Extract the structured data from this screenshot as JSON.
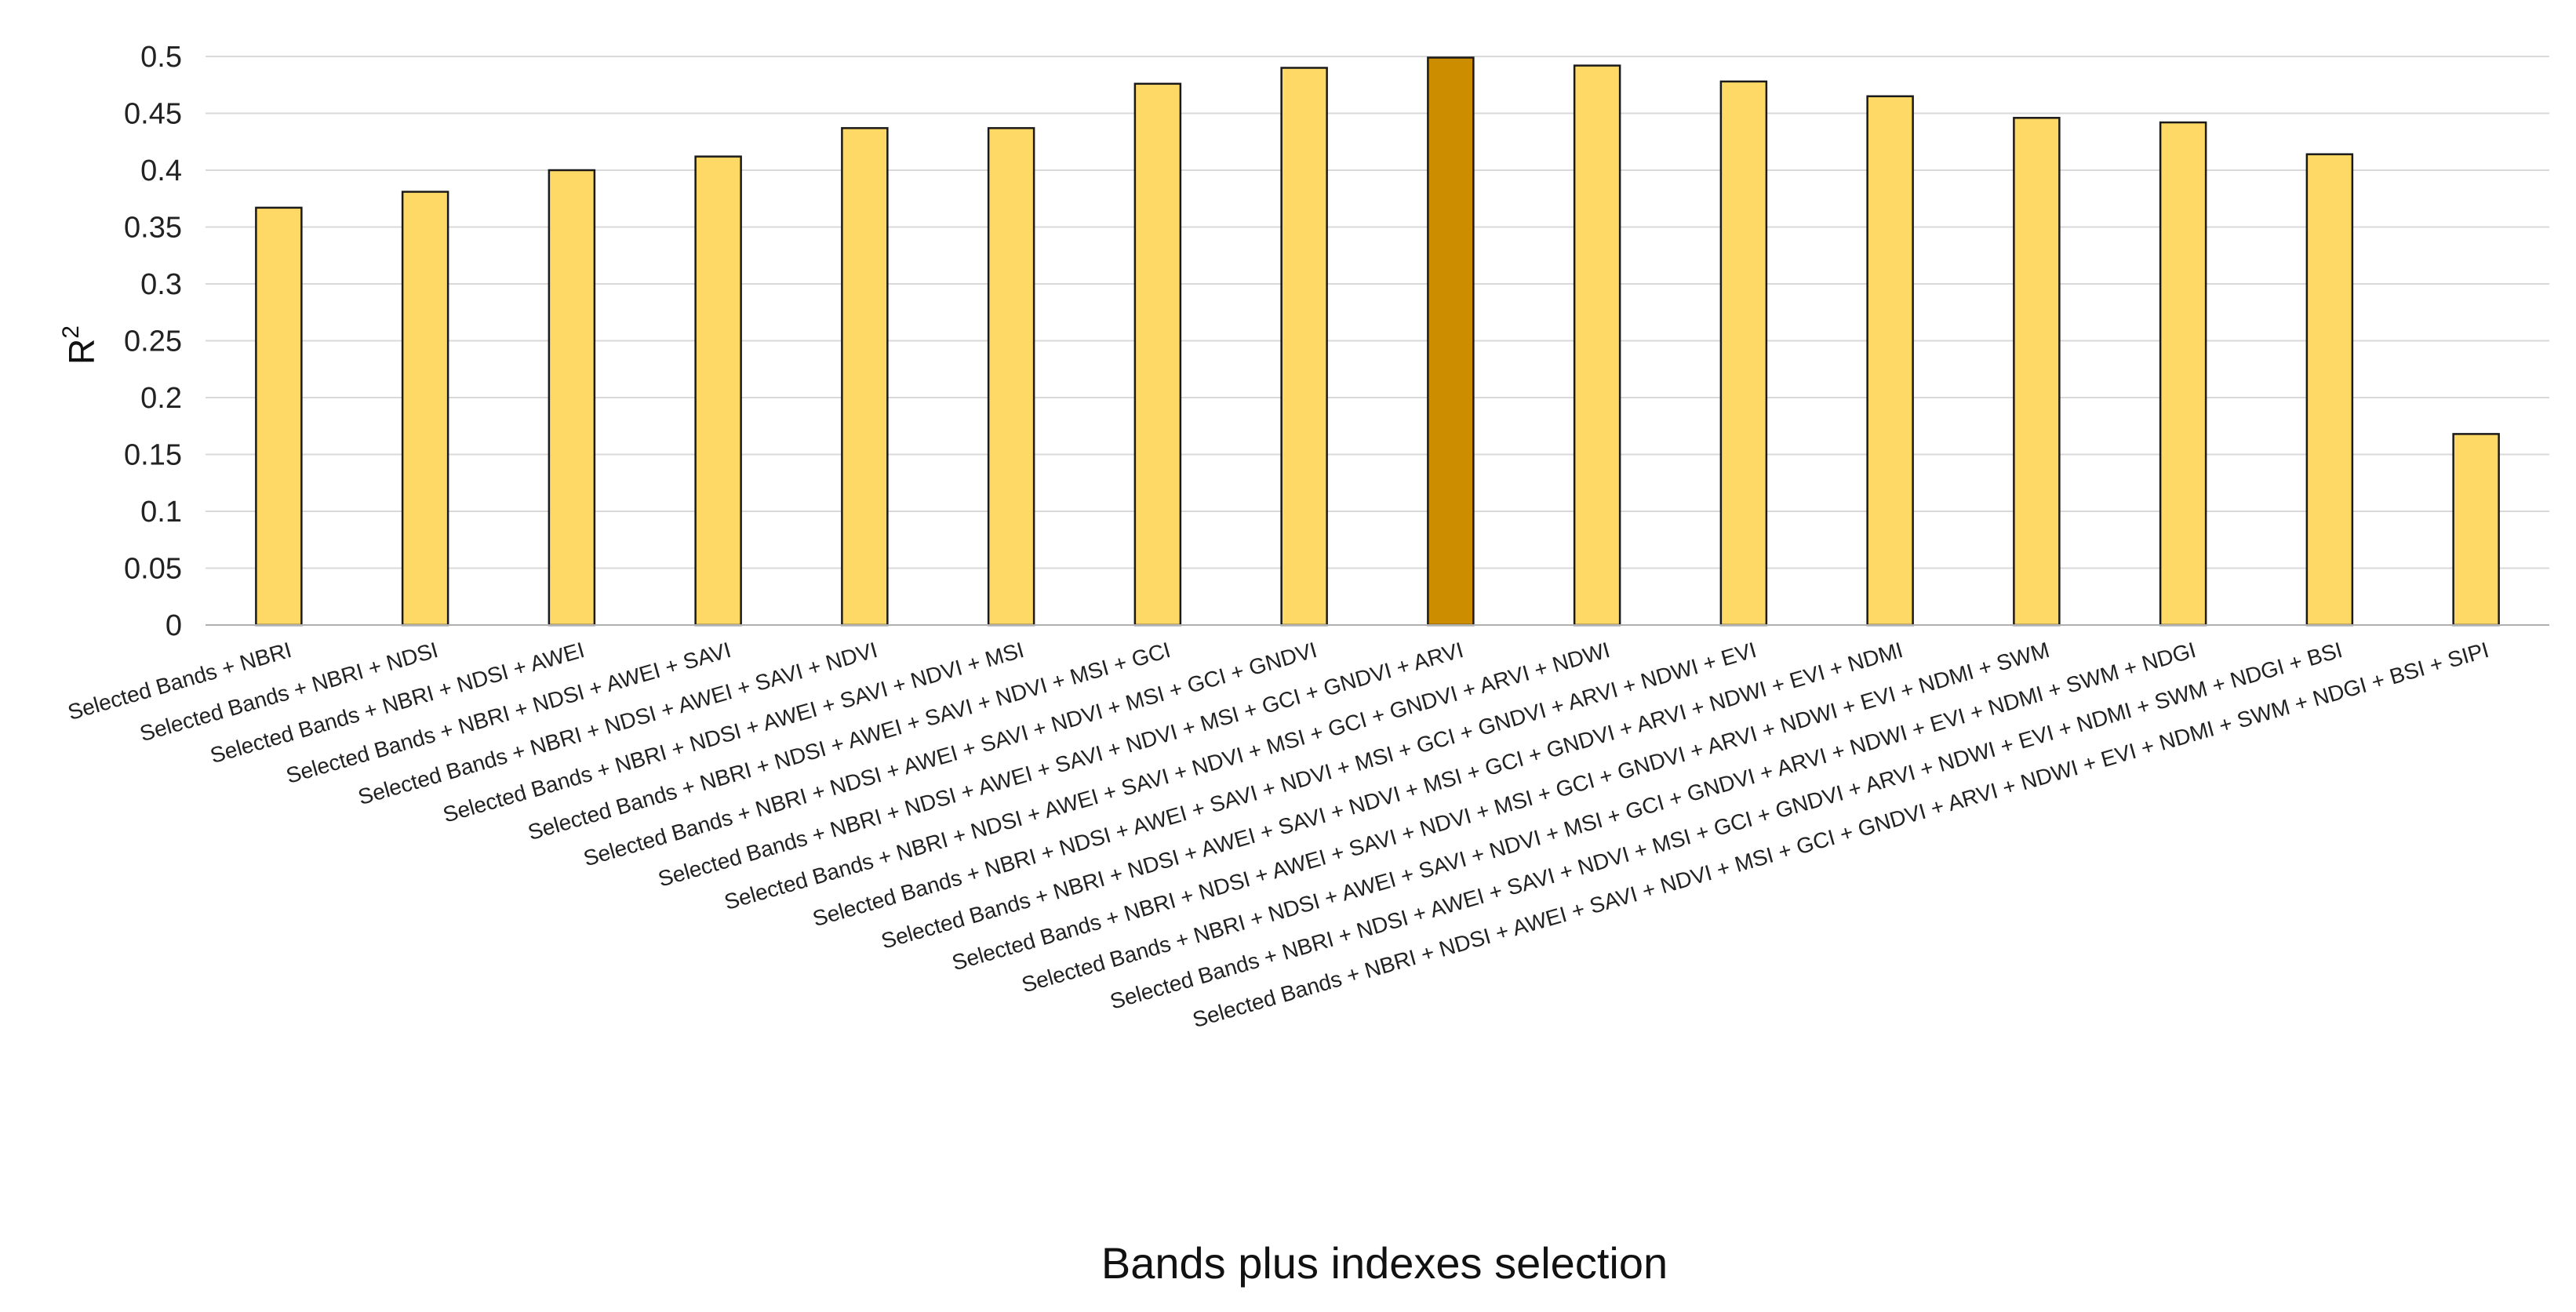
{
  "chart_data": {
    "type": "bar",
    "xlabel": "Bands plus indexes selection",
    "ylabel": "R",
    "ylabel_superscript": "2",
    "ylim": [
      0,
      0.5
    ],
    "yticks": [
      "0",
      "0.05",
      "0.1",
      "0.15",
      "0.2",
      "0.25",
      "0.3",
      "0.35",
      "0.4",
      "0.45",
      "0.5"
    ],
    "grid": true,
    "legend": "none",
    "categories": [
      "Selected Bands + NBRI",
      "Selected Bands + NBRI + NDSI",
      "Selected Bands + NBRI + NDSI + AWEI",
      "Selected Bands + NBRI + NDSI + AWEI + SAVI",
      "Selected Bands + NBRI + NDSI + AWEI + SAVI + NDVI",
      "Selected Bands + NBRI + NDSI + AWEI + SAVI + NDVI + MSI",
      "Selected Bands + NBRI + NDSI + AWEI + SAVI + NDVI + MSI + GCI",
      "Selected Bands + NBRI + NDSI + AWEI + SAVI + NDVI + MSI + GCI + GNDVI",
      "Selected Bands + NBRI + NDSI + AWEI + SAVI + NDVI + MSI + GCI + GNDVI + ARVI",
      "Selected Bands + NBRI + NDSI + AWEI + SAVI + NDVI + MSI + GCI + GNDVI + ARVI + NDWI",
      "Selected Bands + NBRI + NDSI + AWEI + SAVI + NDVI + MSI + GCI + GNDVI + ARVI + NDWI + EVI",
      "Selected Bands + NBRI + NDSI + AWEI + SAVI + NDVI + MSI + GCI + GNDVI + ARVI + NDWI + EVI + NDMI",
      "Selected Bands + NBRI + NDSI + AWEI + SAVI + NDVI + MSI + GCI + GNDVI + ARVI + NDWI + EVI + NDMI + SWM",
      "Selected Bands + NBRI + NDSI + AWEI + SAVI + NDVI + MSI + GCI + GNDVI + ARVI + NDWI + EVI + NDMI + SWM + NDGI",
      "Selected Bands + NBRI + NDSI + AWEI + SAVI + NDVI + MSI + GCI + GNDVI + ARVI + NDWI + EVI + NDMI + SWM + NDGI + BSI",
      "Selected Bands + NBRI + NDSI + AWEI + SAVI + NDVI + MSI + GCI + GNDVI + ARVI + NDWI + EVI + NDMI + SWM + NDGI + BSI + SIPI"
    ],
    "values": [
      0.367,
      0.381,
      0.4,
      0.412,
      0.437,
      0.437,
      0.476,
      0.49,
      0.499,
      0.492,
      0.478,
      0.465,
      0.446,
      0.442,
      0.414,
      0.168
    ],
    "highlight_index": 8,
    "colors": {
      "bar": "#FFD966",
      "highlight": "#CC8E00",
      "outline": "#1a1a1a"
    }
  }
}
